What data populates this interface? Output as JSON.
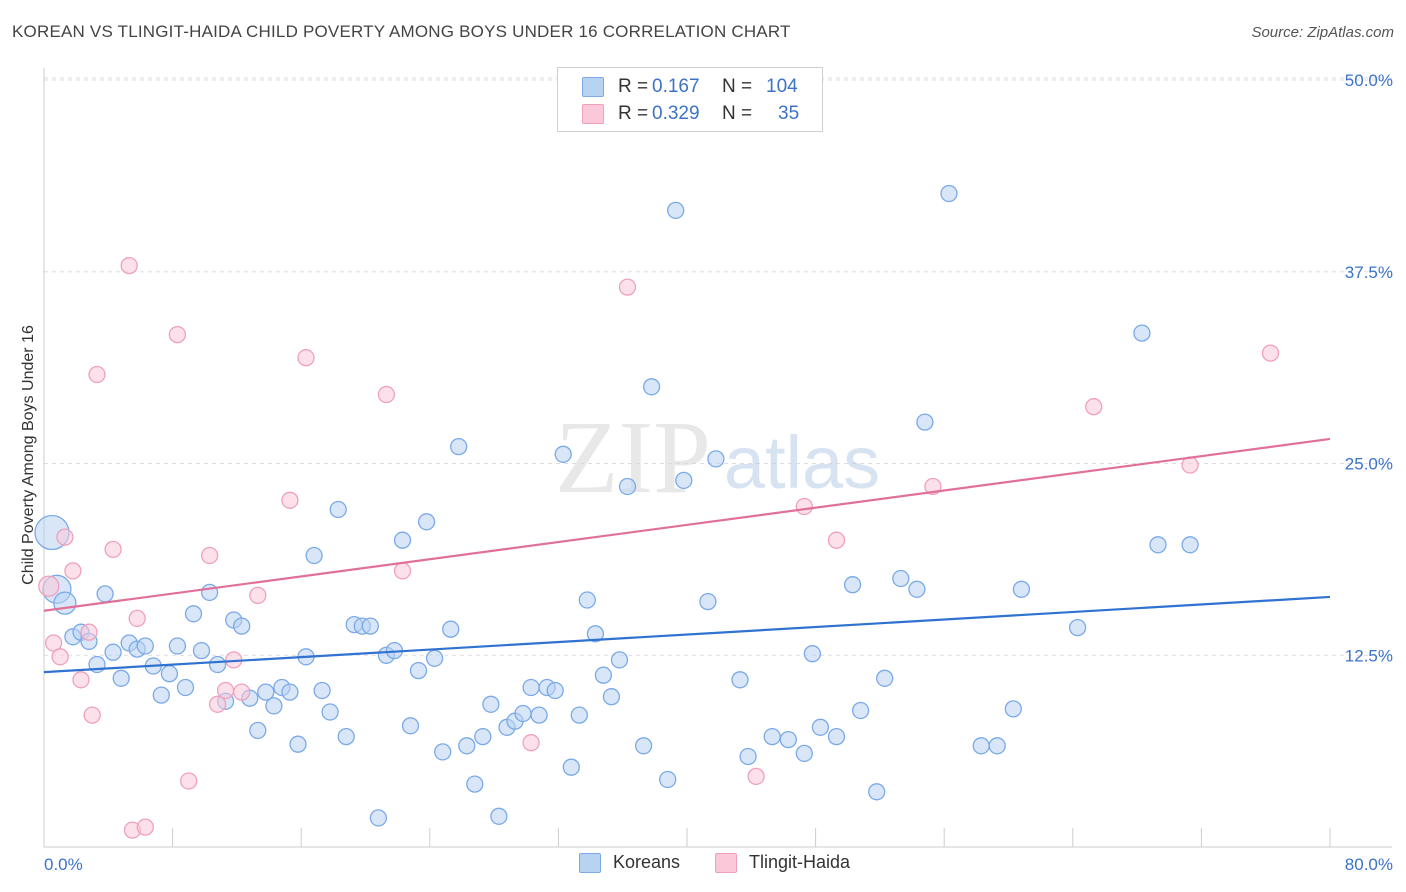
{
  "title": "KOREAN VS TLINGIT-HAIDA CHILD POVERTY AMONG BOYS UNDER 16 CORRELATION CHART",
  "source": "Source: ZipAtlas.com",
  "watermark": {
    "zip": "ZIP",
    "atlas": "atlas"
  },
  "legend_top": {
    "rows": [
      {
        "r_label": "R =",
        "r_value": "0.167",
        "n_label": "N =",
        "n_value": "104"
      },
      {
        "r_label": "R =",
        "r_value": "0.329",
        "n_label": "N =",
        "n_value": "35"
      }
    ]
  },
  "chart_data": {
    "type": "scatter",
    "title": "KOREAN VS TLINGIT-HAIDA CHILD POVERTY AMONG BOYS UNDER 16 CORRELATION CHART",
    "xlabel": "",
    "ylabel": "Child Poverty Among Boys Under 16",
    "xlim": [
      0,
      80
    ],
    "ylim": [
      0,
      50
    ],
    "x_tick_labels": [
      "0.0%",
      "80.0%"
    ],
    "y_ticks": [
      12.5,
      25.0,
      37.5,
      50.0
    ],
    "y_tick_labels": [
      "12.5%",
      "25.0%",
      "37.5%",
      "50.0%"
    ],
    "grid": "horizontal dashed",
    "legend_position": "top-center and bottom",
    "colors": {
      "Koreans": "#7aaae8",
      "Tlingit-Haida": "#f0a0bc",
      "korean_line": "#2f72d0",
      "tlingit_line": "#e0709a"
    },
    "series": [
      {
        "name": "Koreans",
        "r": 0.167,
        "n": 104,
        "trend": {
          "x": [
            0,
            80
          ],
          "y": [
            11.4,
            16.3
          ]
        },
        "points": [
          [
            0.5,
            20.5
          ],
          [
            0.8,
            16.8
          ],
          [
            1.3,
            15.9
          ],
          [
            1.8,
            13.7
          ],
          [
            2.3,
            14.0
          ],
          [
            2.8,
            13.4
          ],
          [
            3.3,
            11.9
          ],
          [
            3.8,
            16.5
          ],
          [
            4.3,
            12.7
          ],
          [
            4.8,
            11.0
          ],
          [
            5.3,
            13.3
          ],
          [
            5.8,
            12.9
          ],
          [
            6.3,
            13.1
          ],
          [
            6.8,
            11.8
          ],
          [
            7.3,
            9.9
          ],
          [
            7.8,
            11.3
          ],
          [
            8.3,
            13.1
          ],
          [
            8.8,
            10.4
          ],
          [
            9.3,
            15.2
          ],
          [
            9.8,
            12.8
          ],
          [
            10.3,
            16.6
          ],
          [
            10.8,
            11.9
          ],
          [
            11.3,
            9.5
          ],
          [
            11.8,
            14.8
          ],
          [
            12.3,
            14.4
          ],
          [
            12.8,
            9.7
          ],
          [
            13.3,
            7.6
          ],
          [
            13.8,
            10.1
          ],
          [
            14.3,
            9.2
          ],
          [
            14.8,
            10.4
          ],
          [
            15.3,
            10.1
          ],
          [
            15.8,
            6.7
          ],
          [
            16.3,
            12.4
          ],
          [
            16.8,
            19.0
          ],
          [
            17.3,
            10.2
          ],
          [
            17.8,
            8.8
          ],
          [
            18.3,
            22.0
          ],
          [
            18.8,
            7.2
          ],
          [
            19.3,
            14.5
          ],
          [
            19.8,
            14.4
          ],
          [
            20.3,
            14.4
          ],
          [
            20.8,
            1.9
          ],
          [
            21.3,
            12.5
          ],
          [
            21.8,
            12.8
          ],
          [
            22.3,
            20.0
          ],
          [
            22.8,
            7.9
          ],
          [
            23.3,
            11.5
          ],
          [
            23.8,
            21.2
          ],
          [
            24.3,
            12.3
          ],
          [
            24.8,
            6.2
          ],
          [
            25.3,
            14.2
          ],
          [
            25.8,
            26.1
          ],
          [
            26.3,
            6.6
          ],
          [
            26.8,
            4.1
          ],
          [
            27.3,
            7.2
          ],
          [
            27.8,
            9.3
          ],
          [
            28.3,
            2.0
          ],
          [
            28.8,
            7.8
          ],
          [
            29.3,
            8.2
          ],
          [
            29.8,
            8.7
          ],
          [
            30.3,
            10.4
          ],
          [
            30.8,
            8.6
          ],
          [
            31.3,
            10.4
          ],
          [
            31.8,
            10.2
          ],
          [
            32.3,
            25.6
          ],
          [
            32.8,
            5.2
          ],
          [
            33.3,
            8.6
          ],
          [
            33.8,
            16.1
          ],
          [
            34.3,
            13.9
          ],
          [
            34.8,
            11.2
          ],
          [
            35.3,
            9.8
          ],
          [
            35.8,
            12.2
          ],
          [
            36.3,
            23.5
          ],
          [
            37.3,
            6.6
          ],
          [
            37.8,
            30.0
          ],
          [
            38.8,
            4.4
          ],
          [
            39.3,
            41.5
          ],
          [
            39.8,
            23.9
          ],
          [
            41.3,
            16.0
          ],
          [
            41.8,
            25.3
          ],
          [
            43.3,
            10.9
          ],
          [
            43.8,
            5.9
          ],
          [
            45.3,
            7.2
          ],
          [
            46.3,
            7.0
          ],
          [
            47.3,
            6.1
          ],
          [
            47.8,
            12.6
          ],
          [
            48.3,
            7.8
          ],
          [
            49.3,
            7.2
          ],
          [
            50.3,
            17.1
          ],
          [
            50.8,
            8.9
          ],
          [
            51.8,
            3.6
          ],
          [
            52.3,
            11.0
          ],
          [
            53.3,
            17.5
          ],
          [
            54.3,
            16.8
          ],
          [
            54.8,
            27.7
          ],
          [
            56.3,
            42.6
          ],
          [
            58.3,
            6.6
          ],
          [
            59.3,
            6.6
          ],
          [
            60.3,
            9.0
          ],
          [
            60.8,
            16.8
          ],
          [
            64.3,
            14.3
          ],
          [
            68.3,
            33.5
          ],
          [
            69.3,
            19.7
          ],
          [
            71.3,
            19.7
          ]
        ],
        "sizes_note": "large markers near x=0.5 and x=0.8"
      },
      {
        "name": "Tlingit-Haida",
        "r": 0.329,
        "n": 35,
        "trend": {
          "x": [
            0,
            80
          ],
          "y": [
            15.4,
            26.6
          ]
        },
        "points": [
          [
            0.3,
            17.0
          ],
          [
            0.6,
            13.3
          ],
          [
            1.0,
            12.4
          ],
          [
            1.3,
            20.2
          ],
          [
            1.8,
            18.0
          ],
          [
            2.3,
            10.9
          ],
          [
            2.8,
            14.0
          ],
          [
            3.0,
            8.6
          ],
          [
            3.3,
            30.8
          ],
          [
            4.3,
            19.4
          ],
          [
            5.3,
            37.9
          ],
          [
            5.8,
            14.9
          ],
          [
            5.5,
            1.1
          ],
          [
            6.3,
            1.3
          ],
          [
            8.3,
            33.4
          ],
          [
            9.0,
            4.3
          ],
          [
            10.3,
            19.0
          ],
          [
            10.8,
            9.3
          ],
          [
            11.3,
            10.2
          ],
          [
            11.8,
            12.2
          ],
          [
            12.3,
            10.1
          ],
          [
            13.3,
            16.4
          ],
          [
            15.3,
            22.6
          ],
          [
            16.3,
            31.9
          ],
          [
            21.3,
            29.5
          ],
          [
            22.3,
            18.0
          ],
          [
            30.3,
            6.8
          ],
          [
            36.3,
            36.5
          ],
          [
            44.3,
            4.6
          ],
          [
            47.3,
            22.2
          ],
          [
            49.3,
            20.0
          ],
          [
            55.3,
            23.5
          ],
          [
            65.3,
            28.7
          ],
          [
            71.3,
            24.9
          ],
          [
            76.3,
            32.2
          ]
        ]
      }
    ]
  },
  "bottom_legend": {
    "items": [
      {
        "label": "Koreans"
      },
      {
        "label": "Tlingit-Haida"
      }
    ]
  }
}
